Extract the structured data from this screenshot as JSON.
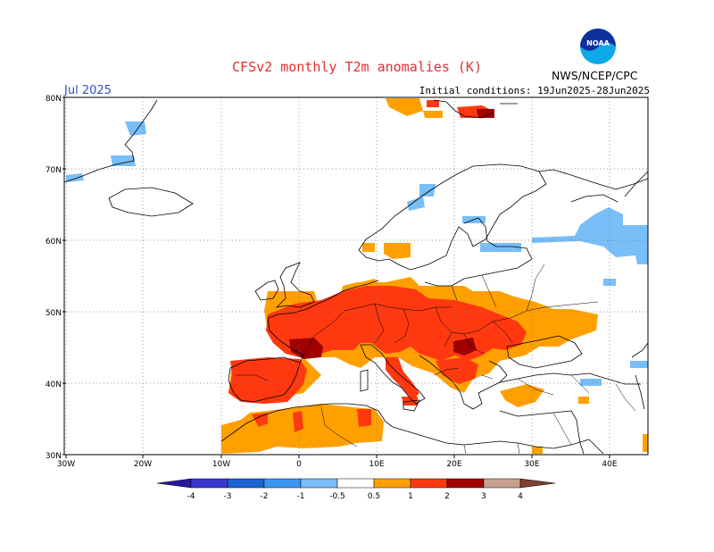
{
  "title": "CFSv2 monthly T2m anomalies (K)",
  "month_label": "Jul 2025",
  "initial_conditions": "Initial conditions: 19Jun2025-28Jun2025",
  "organization": "NWS/NCEP/CPC",
  "logo_text": "NOAA",
  "map": {
    "lon_range": [
      -30,
      45
    ],
    "lat_range": [
      30,
      80
    ],
    "lon_labels": [
      "30W",
      "20W",
      "10W",
      "0",
      "10E",
      "20E",
      "30E",
      "40E"
    ],
    "lat_labels": [
      "30N",
      "40N",
      "50N",
      "60N",
      "70N",
      "80N"
    ],
    "grid": "dotted"
  },
  "colorbar": {
    "labels": [
      "-4",
      "-3",
      "-2",
      "-1",
      "-0.5",
      "0.5",
      "1",
      "2",
      "3",
      "4"
    ],
    "colors": [
      "#2818a0",
      "#3838d0",
      "#1e64d0",
      "#3c96f0",
      "#78bef8",
      "#ffffff",
      "#ffa000",
      "#ff3810",
      "#a00000",
      "#c8a090",
      "#804030"
    ]
  },
  "colors": {
    "cool": "#78bef8",
    "warm1": "#ffa000",
    "warm2": "#ff3810",
    "warm3": "#a00000"
  }
}
